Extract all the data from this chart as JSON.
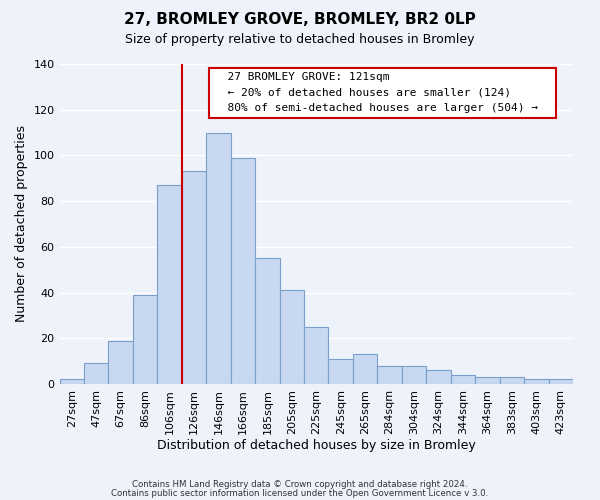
{
  "title": "27, BROMLEY GROVE, BROMLEY, BR2 0LP",
  "subtitle": "Size of property relative to detached houses in Bromley",
  "xlabel": "Distribution of detached houses by size in Bromley",
  "ylabel": "Number of detached properties",
  "bar_labels": [
    "27sqm",
    "47sqm",
    "67sqm",
    "86sqm",
    "106sqm",
    "126sqm",
    "146sqm",
    "166sqm",
    "185sqm",
    "205sqm",
    "225sqm",
    "245sqm",
    "265sqm",
    "284sqm",
    "304sqm",
    "324sqm",
    "344sqm",
    "364sqm",
    "383sqm",
    "403sqm",
    "423sqm"
  ],
  "bar_values": [
    2,
    9,
    19,
    39,
    87,
    93,
    110,
    99,
    55,
    41,
    25,
    11,
    13,
    8,
    8,
    6,
    4,
    3,
    3,
    2,
    2
  ],
  "bar_color": "#c8d8f0",
  "bar_edge_color": "#7a9fc8",
  "vline_x_index": 5,
  "vline_color": "#cc0000",
  "ylim": [
    0,
    140
  ],
  "yticks": [
    0,
    20,
    40,
    60,
    80,
    100,
    120,
    140
  ],
  "annotation_title": "27 BROMLEY GROVE: 121sqm",
  "annotation_line1": "← 20% of detached houses are smaller (124)",
  "annotation_line2": "80% of semi-detached houses are larger (504) →",
  "annotation_box_color": "#ffffff",
  "annotation_box_edge": "#cc0000",
  "footer1": "Contains HM Land Registry data © Crown copyright and database right 2024.",
  "footer2": "Contains public sector information licensed under the Open Government Licence v 3.0.",
  "background_color": "#edf2fb",
  "plot_background": "#edf2fb"
}
